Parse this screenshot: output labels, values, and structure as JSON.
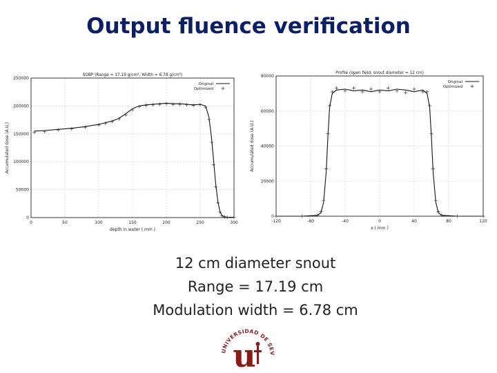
{
  "slide": {
    "title": "Output fluence verification",
    "captions": [
      "12 cm diameter snout",
      "Range = 17.19 cm",
      "Modulation width = 6.78 cm"
    ]
  },
  "logo": {
    "letter": "u",
    "ring_text": "UNIVERSIDAD DE SEVILLA",
    "color": "#8b1a1a"
  },
  "chart_data": [
    {
      "type": "line",
      "title": "SOBP (Range = 17.19 g/cm², Width = 6.78 g/cm²)",
      "xlabel": "depth in water ( mm )",
      "ylabel": "Accumulated dose (A.U.)",
      "xlim": [
        0,
        300
      ],
      "ylim": [
        0,
        250000
      ],
      "xticks": [
        0,
        50,
        100,
        150,
        200,
        250,
        300
      ],
      "yticks": [
        0,
        50000,
        100000,
        150000,
        200000,
        250000
      ],
      "grid": true,
      "legend_position": "top-right",
      "series": [
        {
          "name": "Original",
          "style": "line",
          "x": [
            5,
            20,
            40,
            60,
            80,
            100,
            110,
            120,
            130,
            140,
            150,
            160,
            170,
            180,
            190,
            200,
            210,
            220,
            230,
            240,
            250,
            258,
            263,
            267,
            270,
            273,
            276,
            279,
            282,
            286,
            290,
            300
          ],
          "y": [
            155000,
            156000,
            158000,
            160000,
            163000,
            167000,
            170000,
            173000,
            178000,
            186000,
            195000,
            200000,
            202000,
            203000,
            204000,
            205000,
            204000,
            204000,
            203000,
            202000,
            203000,
            200000,
            180000,
            140000,
            100000,
            60000,
            30000,
            12000,
            4000,
            1500,
            800,
            500
          ]
        },
        {
          "name": "Optimized",
          "style": "markers",
          "x": [
            5,
            20,
            40,
            60,
            80,
            100,
            110,
            120,
            130,
            140,
            150,
            160,
            170,
            180,
            190,
            200,
            210,
            220,
            230,
            240,
            250,
            258,
            263,
            267,
            270,
            273,
            276,
            279,
            282,
            286,
            290,
            300
          ],
          "y": [
            153000,
            154000,
            157000,
            159000,
            162000,
            166000,
            169000,
            172000,
            177000,
            184000,
            193000,
            199000,
            201000,
            202000,
            203000,
            204000,
            203000,
            203000,
            202000,
            201000,
            202000,
            198000,
            176000,
            135000,
            95000,
            55000,
            27000,
            10000,
            3000,
            1200,
            600,
            400
          ]
        }
      ]
    },
    {
      "type": "line",
      "title": "Profile (open field, snout diameter = 12 cm)",
      "xlabel": "x ( mm )",
      "ylabel": "Accumulated dose (A.U.)",
      "xlim": [
        -120,
        120
      ],
      "ylim": [
        0,
        80000
      ],
      "xticks": [
        -120,
        -80,
        -40,
        0,
        40,
        80,
        120
      ],
      "yticks": [
        0,
        20000,
        40000,
        60000,
        80000
      ],
      "grid": true,
      "legend_position": "top-right",
      "series": [
        {
          "name": "Original",
          "style": "line",
          "x": [
            -120,
            -90,
            -72,
            -68,
            -65,
            -62,
            -60,
            -58,
            -55,
            -50,
            -40,
            -30,
            -20,
            -10,
            0,
            10,
            20,
            30,
            40,
            50,
            55,
            58,
            60,
            62,
            65,
            68,
            72,
            90,
            120
          ],
          "y": [
            0,
            0,
            500,
            2000,
            8000,
            25000,
            45000,
            62000,
            70000,
            72000,
            72500,
            71500,
            72000,
            71000,
            72000,
            71500,
            72500,
            72000,
            71000,
            72000,
            70000,
            62000,
            45000,
            25000,
            8000,
            2000,
            500,
            0,
            0
          ]
        },
        {
          "name": "Optimized",
          "style": "markers",
          "x": [
            -120,
            -90,
            -72,
            -68,
            -65,
            -62,
            -60,
            -58,
            -55,
            -50,
            -40,
            -30,
            -20,
            -10,
            0,
            10,
            20,
            30,
            40,
            50,
            55,
            58,
            60,
            62,
            65,
            68,
            72,
            90,
            120
          ],
          "y": [
            0,
            0,
            600,
            2500,
            9000,
            27000,
            47000,
            63000,
            71000,
            73000,
            71500,
            73000,
            71000,
            72500,
            71000,
            73000,
            71500,
            70500,
            72500,
            71000,
            71000,
            63000,
            47000,
            27000,
            9000,
            2500,
            600,
            0,
            0
          ]
        }
      ]
    }
  ]
}
